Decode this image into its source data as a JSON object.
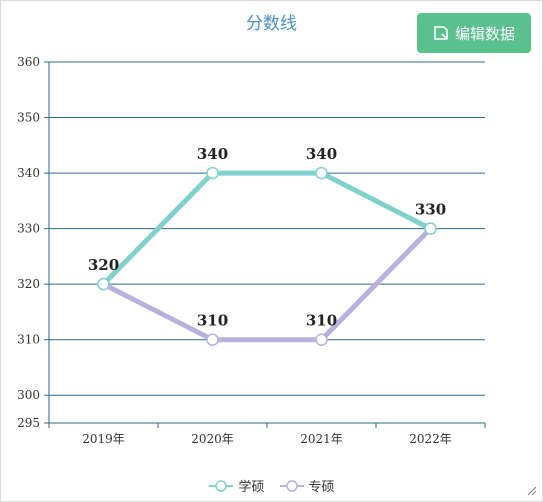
{
  "toolbar": {
    "edit_label": "编辑数据",
    "edit_icon": "edit-icon"
  },
  "chart_data": {
    "type": "line",
    "title": "分数线",
    "categories": [
      "2019年",
      "2020年",
      "2021年",
      "2022年"
    ],
    "series": [
      {
        "name": "学硕",
        "values": [
          320,
          340,
          340,
          330
        ],
        "color": "#7fd1cc"
      },
      {
        "name": "专硕",
        "values": [
          320,
          310,
          310,
          330
        ],
        "color": "#b9b0de"
      }
    ],
    "ylim": [
      295,
      360
    ],
    "yticks": [
      295,
      300,
      310,
      320,
      330,
      340,
      350,
      360
    ],
    "grid": true,
    "legend": "bottom-center",
    "label_positions": {
      "学硕": [
        true,
        true,
        true,
        true
      ],
      "专硕": [
        false,
        true,
        true,
        false
      ]
    }
  },
  "colors": {
    "axis": "#2a6a8a",
    "grid": "#2a6a8a",
    "title": "#4a90c8",
    "button": "#5ac18e"
  }
}
